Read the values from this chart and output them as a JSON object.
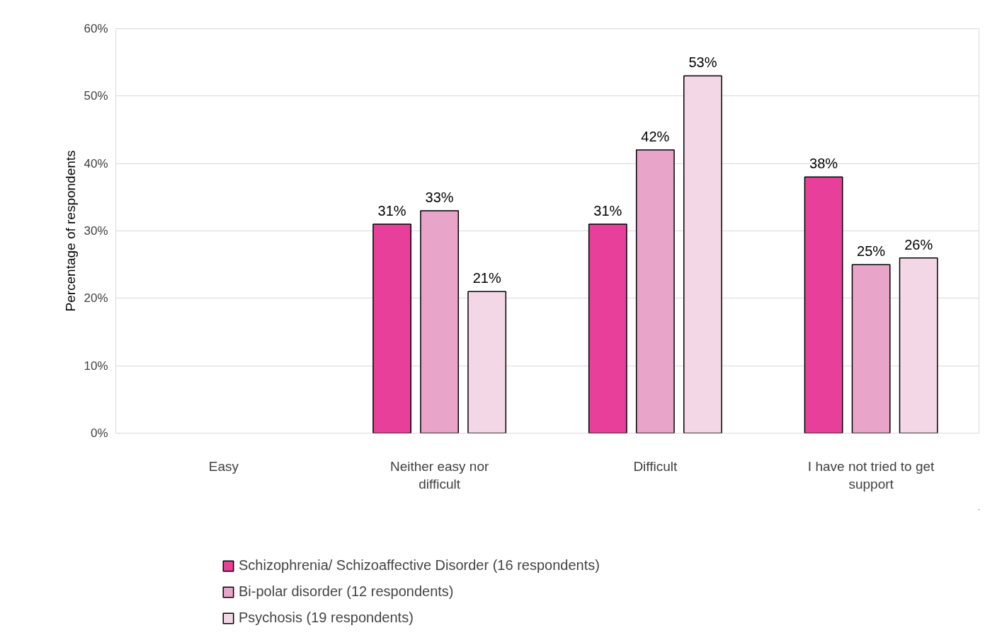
{
  "chart_data": {
    "type": "bar",
    "ylabel": "Percentage of respondents",
    "categories": [
      "Easy",
      "Neither easy nor difficult",
      "Difficult",
      "I have not tried to get support"
    ],
    "series": [
      {
        "name": "Schizophrenia/ Schizoaffective Disorder (16 respondents)",
        "color": "#e8409a",
        "values": [
          null,
          31,
          31,
          38
        ],
        "value_labels": [
          null,
          "31%",
          "31%",
          "38%"
        ]
      },
      {
        "name": "Bi-polar disorder (12 respondents)",
        "color": "#e8a4c9",
        "values": [
          null,
          33,
          42,
          25
        ],
        "value_labels": [
          null,
          "33%",
          "42%",
          "25%"
        ]
      },
      {
        "name": "Psychosis (19 respondents)",
        "color": "#f4d7e6",
        "values": [
          null,
          21,
          53,
          26
        ],
        "value_labels": [
          null,
          "21%",
          "53%",
          "26%"
        ]
      }
    ],
    "ylim": [
      0,
      60
    ],
    "yticks": [
      {
        "value": 0,
        "label": "0%"
      },
      {
        "value": 10,
        "label": "10%"
      },
      {
        "value": 20,
        "label": "20%"
      },
      {
        "value": 30,
        "label": "30%"
      },
      {
        "value": 40,
        "label": "40%"
      },
      {
        "value": 50,
        "label": "50%"
      },
      {
        "value": 60,
        "label": "60%"
      }
    ],
    "grid": "y",
    "legend": "bottom"
  }
}
